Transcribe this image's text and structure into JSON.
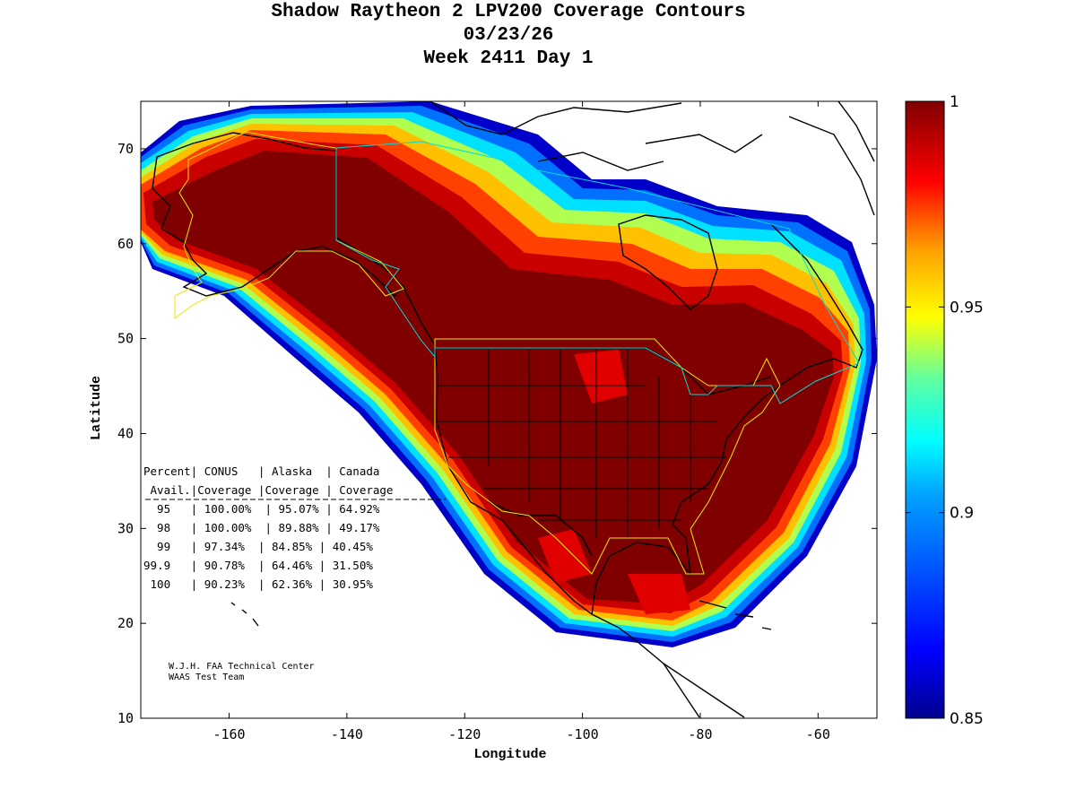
{
  "title": {
    "line1": "Shadow Raytheon 2 LPV200 Coverage Contours",
    "line2": "03/23/26",
    "line3": "Week 2411 Day 1"
  },
  "axes": {
    "xlabel": "Longitude",
    "ylabel": "Latitude",
    "x_range": [
      -175,
      -50
    ],
    "y_range": [
      10,
      75
    ],
    "x_ticks": [
      "-160",
      "-140",
      "-120",
      "-100",
      "-80",
      "-60"
    ],
    "x_tick_values": [
      -160,
      -140,
      -120,
      -100,
      -80,
      -60
    ],
    "y_ticks": [
      "10",
      "20",
      "30",
      "40",
      "50",
      "60",
      "70"
    ],
    "y_tick_values": [
      10,
      20,
      30,
      40,
      50,
      60,
      70
    ]
  },
  "colorbar": {
    "min": 0.85,
    "max": 1,
    "labels": [
      "1",
      "0.95",
      "0.9",
      "0.85"
    ],
    "label_values": [
      1,
      0.95,
      0.9,
      0.85
    ],
    "colormap": "jet",
    "colors": [
      "#00008f",
      "#0000ff",
      "#00a0ff",
      "#00ffff",
      "#60ff9f",
      "#ffff00",
      "#ff9f00",
      "#ff0000",
      "#800000"
    ]
  },
  "table": {
    "header1": "Percent| CONUS   | Alaska  | Canada",
    "header2": " Avail.|Coverage |Coverage | Coverage",
    "rows": [
      "  95   | 100.00%  | 95.07% | 64.92%",
      "  98   | 100.00%  | 89.88% | 49.17%",
      "  99   | 97.34%  | 84.85% | 40.45%",
      "99.9   | 90.78%  | 64.46% | 31.50%",
      " 100   | 90.23%  | 62.36% | 30.95%"
    ]
  },
  "credit": {
    "line1": "W.J.H. FAA Technical Center",
    "line2": "WAAS Test Team"
  }
}
